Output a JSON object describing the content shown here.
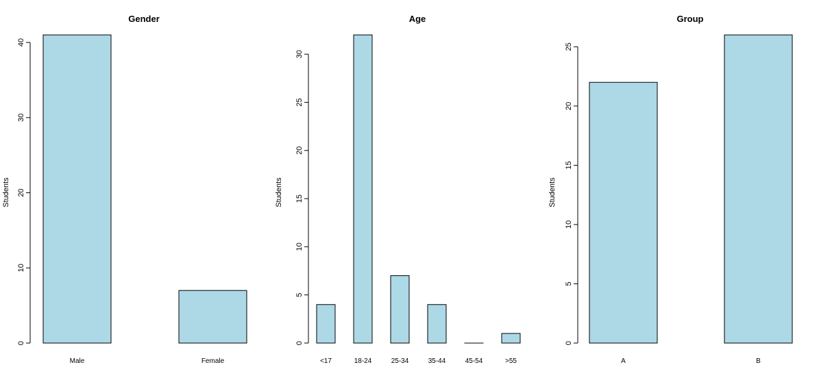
{
  "colors": {
    "bar_fill": "#add8e6",
    "bar_stroke": "#000000",
    "axis": "#000000"
  },
  "chart_data": [
    {
      "type": "bar",
      "title": "Gender",
      "ylabel": "Students",
      "xlabel": "",
      "categories": [
        "Male",
        "Female"
      ],
      "values": [
        41,
        7
      ],
      "ylim": [
        0,
        41
      ],
      "yticks": [
        0,
        10,
        20,
        30,
        40
      ],
      "grid": false
    },
    {
      "type": "bar",
      "title": "Age",
      "ylabel": "Students",
      "xlabel": "",
      "categories": [
        "<17",
        "18-24",
        "25-34",
        "35-44",
        "45-54",
        ">55"
      ],
      "values": [
        4,
        32,
        7,
        4,
        0,
        1
      ],
      "ylim": [
        0,
        32
      ],
      "yticks": [
        0,
        5,
        10,
        15,
        20,
        25,
        30
      ],
      "grid": false
    },
    {
      "type": "bar",
      "title": "Group",
      "ylabel": "Students",
      "xlabel": "",
      "categories": [
        "A",
        "B"
      ],
      "values": [
        22,
        26
      ],
      "ylim": [
        0,
        26
      ],
      "yticks": [
        0,
        5,
        10,
        15,
        20,
        25
      ],
      "grid": false
    }
  ]
}
